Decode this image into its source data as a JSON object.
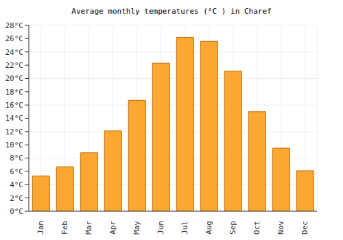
{
  "chart_data": {
    "type": "bar",
    "title": "Average monthly temperatures (°C ) in Charef",
    "categories": [
      "Jan",
      "Feb",
      "Mar",
      "Apr",
      "May",
      "Jun",
      "Jul",
      "Aug",
      "Sep",
      "Oct",
      "Nov",
      "Dec"
    ],
    "values": [
      5.3,
      6.7,
      8.8,
      12.1,
      16.7,
      22.3,
      26.2,
      25.6,
      21.1,
      15.0,
      9.5,
      6.1
    ],
    "color": "#fba731",
    "ylim": [
      0,
      28
    ],
    "yticks": [
      {
        "value": 0,
        "label": "0°C"
      },
      {
        "value": 2,
        "label": "2°C"
      },
      {
        "value": 4,
        "label": "4°C"
      },
      {
        "value": 6,
        "label": "6°C"
      },
      {
        "value": 8,
        "label": "8°C"
      },
      {
        "value": 10,
        "label": "10°C"
      },
      {
        "value": 12,
        "label": "12°C"
      },
      {
        "value": 14,
        "label": "14°C"
      },
      {
        "value": 16,
        "label": "16°C"
      },
      {
        "value": 18,
        "label": "18°C"
      },
      {
        "value": 20,
        "label": "20°C"
      },
      {
        "value": 22,
        "label": "22°C"
      },
      {
        "value": 24,
        "label": "24°C"
      },
      {
        "value": 26,
        "label": "26°C"
      },
      {
        "value": 28,
        "label": "28°C"
      }
    ],
    "grid": true
  }
}
